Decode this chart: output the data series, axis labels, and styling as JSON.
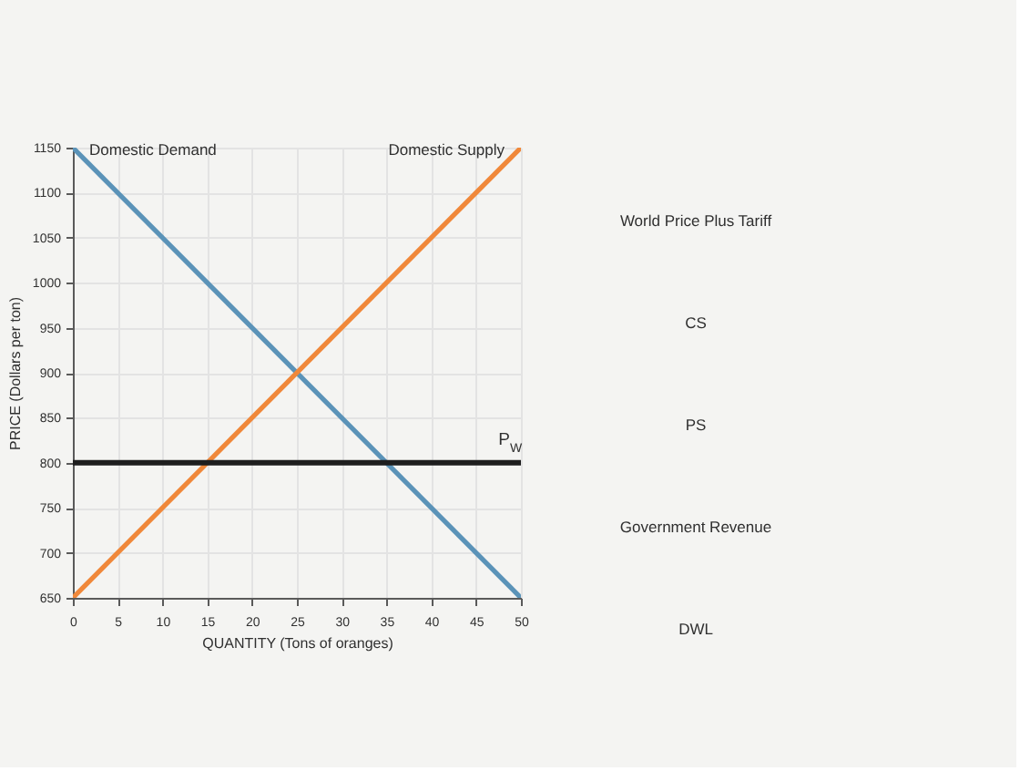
{
  "chart_data": {
    "type": "line",
    "xlabel": "QUANTITY (Tons of oranges)",
    "ylabel": "PRICE (Dollars per ton)",
    "x": [
      0,
      50
    ],
    "series": [
      {
        "name": "Domestic Demand",
        "color": "#5b93b8",
        "values": [
          1150,
          650
        ]
      },
      {
        "name": "Domestic Supply",
        "color": "#f0883a",
        "values": [
          650,
          1150
        ]
      }
    ],
    "xlim": [
      0,
      50
    ],
    "ylim": [
      650,
      1150
    ],
    "xticks": [
      0,
      5,
      10,
      15,
      20,
      25,
      30,
      35,
      40,
      45,
      50
    ],
    "yticks": [
      650,
      700,
      750,
      800,
      850,
      900,
      950,
      1000,
      1050,
      1100,
      1150
    ],
    "grid": true,
    "ref_lines": [
      {
        "axis": "y",
        "value": 800,
        "label": "P$_{W}$",
        "color": "#1e1e1e"
      }
    ],
    "annotations": [
      "World Price Plus Tariff",
      "CS",
      "PS",
      "Government Revenue",
      "DWL"
    ]
  }
}
